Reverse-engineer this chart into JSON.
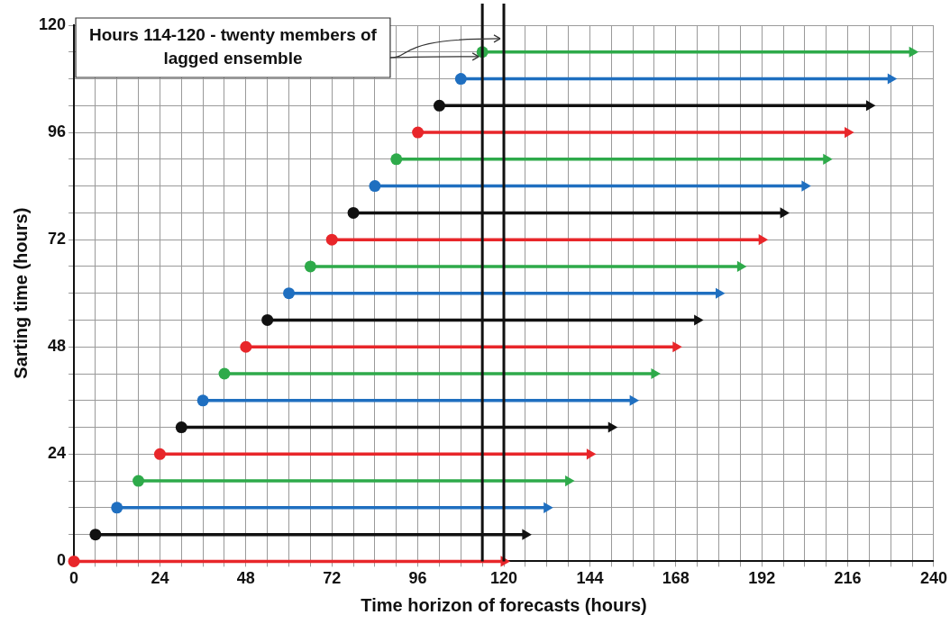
{
  "chart_data": {
    "type": "line",
    "xlabel": "Time horizon of forecasts (hours)",
    "ylabel": "Sarting time (hours)",
    "annotations": [
      {
        "text": "Hours 114-120 - twenty members of lagged ensemble",
        "x": 120,
        "y": 117
      }
    ],
    "series": [
      {
        "color": "#e8262a",
        "x": [
          0,
          120
        ],
        "values": [
          0,
          0
        ]
      },
      {
        "color": "#111111",
        "x": [
          6,
          126
        ],
        "values": [
          6,
          6
        ]
      },
      {
        "color": "#1f6fc0",
        "x": [
          12,
          132
        ],
        "values": [
          12,
          12
        ]
      },
      {
        "color": "#2eaa4a",
        "x": [
          18,
          138
        ],
        "values": [
          18,
          18
        ]
      },
      {
        "color": "#e8262a",
        "x": [
          24,
          144
        ],
        "values": [
          24,
          24
        ]
      },
      {
        "color": "#111111",
        "x": [
          30,
          150
        ],
        "values": [
          30,
          30
        ]
      },
      {
        "color": "#1f6fc0",
        "x": [
          36,
          156
        ],
        "values": [
          36,
          36
        ]
      },
      {
        "color": "#2eaa4a",
        "x": [
          42,
          162
        ],
        "values": [
          42,
          42
        ]
      },
      {
        "color": "#e8262a",
        "x": [
          48,
          168
        ],
        "values": [
          48,
          48
        ]
      },
      {
        "color": "#111111",
        "x": [
          54,
          174
        ],
        "values": [
          54,
          54
        ]
      },
      {
        "color": "#1f6fc0",
        "x": [
          60,
          180
        ],
        "values": [
          60,
          60
        ]
      },
      {
        "color": "#2eaa4a",
        "x": [
          66,
          186
        ],
        "values": [
          66,
          66
        ]
      },
      {
        "color": "#e8262a",
        "x": [
          72,
          192
        ],
        "values": [
          72,
          72
        ]
      },
      {
        "color": "#111111",
        "x": [
          78,
          198
        ],
        "values": [
          78,
          78
        ]
      },
      {
        "color": "#1f6fc0",
        "x": [
          84,
          204
        ],
        "values": [
          84,
          84
        ]
      },
      {
        "color": "#2eaa4a",
        "x": [
          90,
          210
        ],
        "values": [
          90,
          90
        ]
      },
      {
        "color": "#e8262a",
        "x": [
          96,
          216
        ],
        "values": [
          96,
          96
        ]
      },
      {
        "color": "#111111",
        "x": [
          102,
          222
        ],
        "values": [
          102,
          102
        ]
      },
      {
        "color": "#1f6fc0",
        "x": [
          108,
          228
        ],
        "values": [
          108,
          108
        ]
      },
      {
        "color": "#2eaa4a",
        "x": [
          114,
          234
        ],
        "values": [
          114,
          114
        ]
      }
    ],
    "ref_lines": [
      {
        "axis": "x",
        "value": 114,
        "color": "#111111"
      },
      {
        "axis": "x",
        "value": 120,
        "color": "#111111"
      }
    ],
    "xlim": [
      0,
      240
    ],
    "xticks": [
      0,
      {
        "value": 6,
        "label": null
      },
      {
        "value": 12,
        "label": null
      },
      {
        "value": 18,
        "label": null
      },
      24,
      {
        "value": 30,
        "label": null
      },
      {
        "value": 36,
        "label": null
      },
      {
        "value": 42,
        "label": null
      },
      48,
      {
        "value": 54,
        "label": null
      },
      {
        "value": 60,
        "label": null
      },
      {
        "value": 66,
        "label": null
      },
      72,
      {
        "value": 78,
        "label": null
      },
      {
        "value": 84,
        "label": null
      },
      {
        "value": 90,
        "label": null
      },
      96,
      {
        "value": 102,
        "label": null
      },
      {
        "value": 108,
        "label": null
      },
      {
        "value": 114,
        "label": null
      },
      120,
      {
        "value": 126,
        "label": null
      },
      {
        "value": 132,
        "label": null
      },
      {
        "value": 138,
        "label": null
      },
      144,
      {
        "value": 150,
        "label": null
      },
      {
        "value": 156,
        "label": null
      },
      {
        "value": 162,
        "label": null
      },
      168,
      {
        "value": 174,
        "label": null
      },
      {
        "value": 180,
        "label": null
      },
      {
        "value": 186,
        "label": null
      },
      192,
      {
        "value": 198,
        "label": null
      },
      {
        "value": 204,
        "label": null
      },
      {
        "value": 210,
        "label": null
      },
      216,
      {
        "value": 222,
        "label": null
      },
      {
        "value": 228,
        "label": null
      },
      {
        "value": 234,
        "label": null
      },
      240
    ],
    "ylim": [
      0,
      120
    ],
    "yticks": [
      0,
      {
        "value": 6,
        "label": null
      },
      {
        "value": 12,
        "label": null
      },
      {
        "value": 18,
        "label": null
      },
      24,
      {
        "value": 30,
        "label": null
      },
      {
        "value": 36,
        "label": null
      },
      {
        "value": 42,
        "label": null
      },
      48,
      {
        "value": 54,
        "label": null
      },
      {
        "value": 60,
        "label": null
      },
      {
        "value": 66,
        "label": null
      },
      72,
      {
        "value": 78,
        "label": null
      },
      {
        "value": 84,
        "label": null
      },
      {
        "value": 90,
        "label": null
      },
      96,
      {
        "value": 102,
        "label": null
      },
      {
        "value": 108,
        "label": null
      },
      {
        "value": 114,
        "label": null
      },
      120
    ],
    "grid": true,
    "legend": false,
    "marker": "circle",
    "line_style": "solid"
  }
}
